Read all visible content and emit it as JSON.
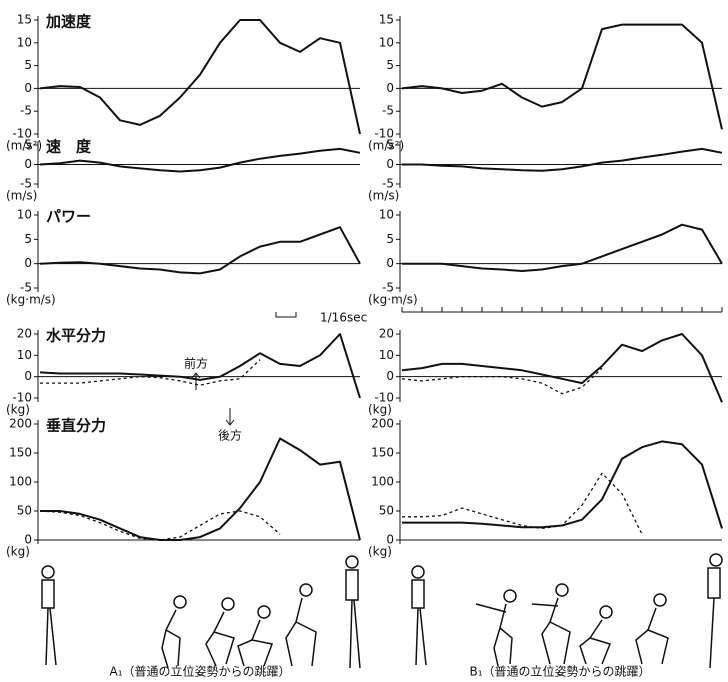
{
  "chart_data": [
    {
      "type": "line",
      "label": "加速度",
      "unit": "(m/s²)",
      "x": [
        0,
        1,
        2,
        3,
        4,
        5,
        6,
        7,
        8,
        9,
        10,
        11,
        12,
        13,
        14,
        15,
        16
      ],
      "xlim": [
        0,
        16
      ],
      "ylim": [
        -10,
        15
      ],
      "yticks": [
        15,
        10,
        5,
        0,
        -5,
        -10
      ],
      "series": [
        {
          "color": "#111111",
          "linestyle": "solid",
          "values": [
            0,
            0.5,
            0.3,
            -2,
            -7,
            -8,
            -6,
            -2,
            3,
            10,
            15,
            15,
            10,
            8,
            11,
            10,
            -10
          ]
        }
      ]
    },
    {
      "type": "line",
      "label": "速　度",
      "unit": "(m/s)",
      "x": [
        0,
        1,
        2,
        3,
        4,
        5,
        6,
        7,
        8,
        9,
        10,
        11,
        12,
        13,
        14,
        15,
        16
      ],
      "xlim": [
        0,
        16
      ],
      "ylim": [
        -5,
        5
      ],
      "yticks": [
        5,
        0,
        -5
      ],
      "series": [
        {
          "color": "#111111",
          "linestyle": "solid",
          "values": [
            0,
            0.3,
            1,
            0.5,
            -0.5,
            -1,
            -1.5,
            -1.8,
            -1.5,
            -0.8,
            0.5,
            1.5,
            2.2,
            2.8,
            3.5,
            4,
            3
          ]
        }
      ]
    },
    {
      "type": "line",
      "label": "パワー",
      "unit": "(kg·m/s)",
      "x": [
        0,
        1,
        2,
        3,
        4,
        5,
        6,
        7,
        8,
        9,
        10,
        11,
        12,
        13,
        14,
        15,
        16
      ],
      "xlim": [
        0,
        16
      ],
      "ylim": [
        -5,
        10
      ],
      "yticks": [
        10,
        5,
        0,
        -5
      ],
      "series": [
        {
          "color": "#111111",
          "linestyle": "solid",
          "values": [
            0,
            0.2,
            0.3,
            0,
            -0.5,
            -1,
            -1.2,
            -1.8,
            -2,
            -1.2,
            1.5,
            3.5,
            4.5,
            4.5,
            6,
            7.5,
            0
          ]
        }
      ]
    },
    {
      "type": "line",
      "label": "水平分力",
      "unit": "(kg)",
      "x": [
        0,
        1,
        2,
        3,
        4,
        5,
        6,
        7,
        8,
        9,
        10,
        11,
        12,
        13,
        14,
        15,
        16
      ],
      "xlim": [
        0,
        16
      ],
      "ylim": [
        -10,
        20
      ],
      "yticks": [
        20,
        10,
        0,
        -10
      ],
      "series": [
        {
          "color": "#111111",
          "linestyle": "solid",
          "values": [
            2,
            1.5,
            1.5,
            1.5,
            1.5,
            1,
            0.5,
            0,
            -1.5,
            0,
            5,
            11,
            6,
            5,
            10,
            20,
            -10
          ]
        },
        {
          "color": "#111111",
          "linestyle": "dashed",
          "values": [
            -3,
            -3,
            -3,
            -2,
            -1,
            0,
            -0.5,
            -2,
            -4,
            -2,
            -1,
            8,
            null,
            null,
            null,
            null,
            null
          ]
        }
      ]
    },
    {
      "type": "line",
      "label": "垂直分力",
      "unit": "(kg)",
      "x": [
        0,
        1,
        2,
        3,
        4,
        5,
        6,
        7,
        8,
        9,
        10,
        11,
        12,
        13,
        14,
        15,
        16
      ],
      "xlim": [
        0,
        16
      ],
      "ylim": [
        0,
        200
      ],
      "yticks": [
        200,
        150,
        100,
        50,
        0
      ],
      "series": [
        {
          "color": "#111111",
          "linestyle": "solid",
          "values": [
            50,
            50,
            45,
            35,
            20,
            5,
            0,
            0,
            5,
            20,
            55,
            100,
            175,
            155,
            130,
            135,
            0
          ]
        },
        {
          "color": "#111111",
          "linestyle": "dashed",
          "values": [
            50,
            48,
            42,
            30,
            15,
            3,
            0,
            5,
            25,
            45,
            50,
            40,
            10,
            null,
            null,
            null,
            null
          ]
        }
      ]
    },
    {
      "type": "line",
      "unit": "(m/s²)",
      "x": [
        0,
        1,
        2,
        3,
        4,
        5,
        6,
        7,
        8,
        9,
        10,
        11,
        12,
        13,
        14,
        15,
        16
      ],
      "xlim": [
        0,
        16
      ],
      "ylim": [
        -10,
        15
      ],
      "yticks": [
        15,
        10,
        5,
        0,
        -5,
        -10
      ],
      "series": [
        {
          "color": "#111111",
          "linestyle": "solid",
          "values": [
            0,
            0.5,
            0,
            -1,
            -0.5,
            1,
            -2,
            -4,
            -3,
            0,
            13,
            14,
            14,
            14,
            14,
            10,
            -9
          ]
        }
      ]
    },
    {
      "type": "line",
      "unit": "(m/s)",
      "x": [
        0,
        1,
        2,
        3,
        4,
        5,
        6,
        7,
        8,
        9,
        10,
        11,
        12,
        13,
        14,
        15,
        16
      ],
      "xlim": [
        0,
        16
      ],
      "ylim": [
        -5,
        5
      ],
      "yticks": [
        5,
        0,
        -5
      ],
      "series": [
        {
          "color": "#111111",
          "linestyle": "solid",
          "values": [
            0,
            0,
            -0.3,
            -0.5,
            -1,
            -1.2,
            -1.5,
            -1.6,
            -1.2,
            -0.5,
            0.5,
            1,
            1.8,
            2.5,
            3.3,
            4,
            3
          ]
        }
      ]
    },
    {
      "type": "line",
      "unit": "(kg·m/s)",
      "x": [
        0,
        1,
        2,
        3,
        4,
        5,
        6,
        7,
        8,
        9,
        10,
        11,
        12,
        13,
        14,
        15,
        16
      ],
      "xlim": [
        0,
        16
      ],
      "ylim": [
        -5,
        10
      ],
      "yticks": [
        10,
        5,
        0,
        -5
      ],
      "series": [
        {
          "color": "#111111",
          "linestyle": "solid",
          "values": [
            0,
            0,
            0,
            -0.5,
            -1,
            -1.2,
            -1.5,
            -1.2,
            -0.5,
            0,
            1.5,
            3,
            4.5,
            6,
            8,
            7,
            0
          ]
        }
      ]
    },
    {
      "type": "line",
      "unit": "(kg)",
      "x": [
        0,
        1,
        2,
        3,
        4,
        5,
        6,
        7,
        8,
        9,
        10,
        11,
        12,
        13,
        14,
        15,
        16
      ],
      "xlim": [
        0,
        16
      ],
      "ylim": [
        -10,
        20
      ],
      "yticks": [
        20,
        10,
        0,
        -10
      ],
      "series": [
        {
          "color": "#111111",
          "linestyle": "solid",
          "values": [
            3,
            4,
            6,
            6,
            5,
            4,
            3,
            1,
            -1,
            -3,
            5,
            15,
            12,
            17,
            20,
            10,
            -12
          ]
        },
        {
          "color": "#111111",
          "linestyle": "dashed",
          "values": [
            -1,
            -2,
            -1,
            0,
            0,
            0,
            -1,
            -3,
            -8,
            -5,
            4,
            null,
            null,
            null,
            null,
            null,
            null
          ]
        }
      ]
    },
    {
      "type": "line",
      "unit": "(kg)",
      "x": [
        0,
        1,
        2,
        3,
        4,
        5,
        6,
        7,
        8,
        9,
        10,
        11,
        12,
        13,
        14,
        15,
        16
      ],
      "xlim": [
        0,
        16
      ],
      "ylim": [
        0,
        200
      ],
      "yticks": [
        200,
        150,
        100,
        50,
        0
      ],
      "series": [
        {
          "color": "#111111",
          "linestyle": "solid",
          "values": [
            30,
            30,
            30,
            30,
            28,
            25,
            22,
            22,
            25,
            35,
            70,
            140,
            160,
            170,
            165,
            130,
            20
          ]
        },
        {
          "color": "#111111",
          "linestyle": "dashed",
          "values": [
            40,
            40,
            42,
            55,
            45,
            35,
            25,
            20,
            25,
            60,
            115,
            80,
            10,
            null,
            null,
            null,
            null
          ]
        }
      ]
    }
  ],
  "annotations": {
    "time_scale": "1/16sec",
    "forward": "前方",
    "backward": "後方"
  },
  "captions": [
    "A₁（普通の立位姿勢からの跳躍）",
    "B₁（普通の立位姿勢からの跳躍）"
  ]
}
